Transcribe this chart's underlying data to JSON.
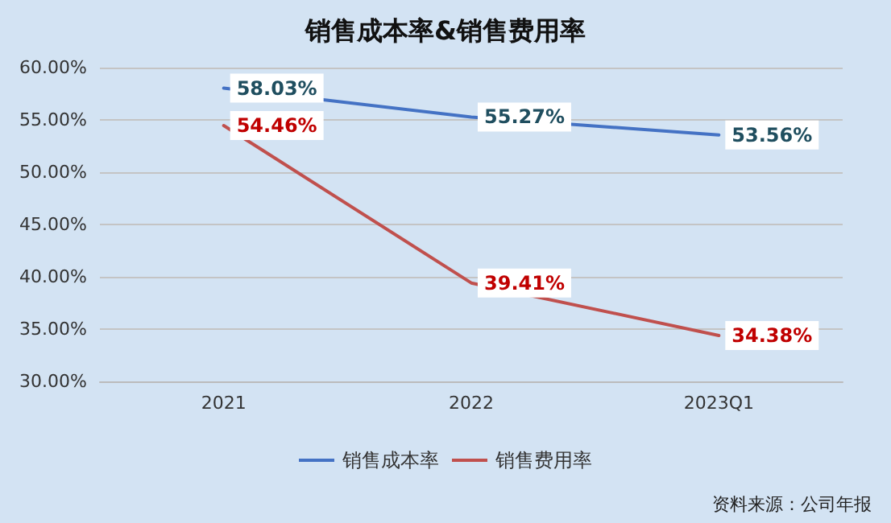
{
  "chart_data": {
    "type": "line",
    "title": "销售成本率&销售费用率",
    "categories": [
      "2021",
      "2022",
      "2023Q1"
    ],
    "series": [
      {
        "name": "销售成本率",
        "color": "#4472c4",
        "values": [
          58.03,
          55.27,
          53.56
        ],
        "value_labels": [
          "58.03%",
          "55.27%",
          "53.56%"
        ]
      },
      {
        "name": "销售费用率",
        "color": "#c0504d",
        "values": [
          54.46,
          39.41,
          34.38
        ],
        "value_labels": [
          "54.46%",
          "39.41%",
          "34.38%"
        ]
      }
    ],
    "ylim": [
      30,
      60
    ],
    "yticks": [
      {
        "value": 30,
        "label": "30.00%"
      },
      {
        "value": 35,
        "label": "35.00%"
      },
      {
        "value": 40,
        "label": "40.00%"
      },
      {
        "value": 45,
        "label": "45.00%"
      },
      {
        "value": 50,
        "label": "50.00%"
      },
      {
        "value": 55,
        "label": "55.00%"
      },
      {
        "value": 60,
        "label": "60.00%"
      }
    ],
    "grid": "y",
    "legend": "bottom",
    "marker": "none",
    "line_style": "solid",
    "annotations": [
      "资料来源：公司年报"
    ]
  }
}
